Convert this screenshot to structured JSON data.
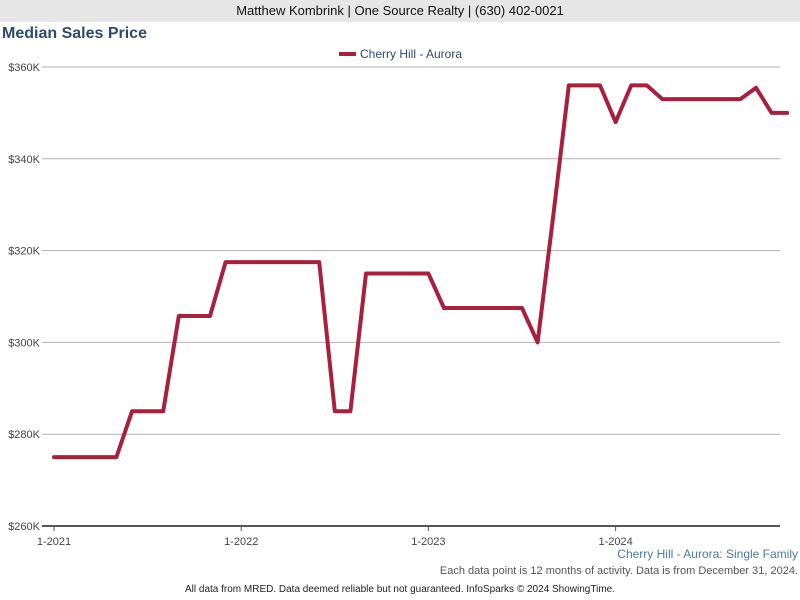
{
  "header": {
    "agent_line": "Matthew Kombrink | One Source Realty | (630) 402-0021"
  },
  "chart_data": {
    "type": "line",
    "title": "Median Sales Price",
    "xlabel": "",
    "ylabel": "",
    "legend_position": "top-center",
    "grid": true,
    "ylim": [
      260000,
      360000
    ],
    "y_ticks": [
      260000,
      280000,
      300000,
      320000,
      340000,
      360000
    ],
    "y_tick_labels": [
      "$260K",
      "$280K",
      "$300K",
      "$320K",
      "$340K",
      "$360K"
    ],
    "x_ticks": [
      "2021-01",
      "2022-01",
      "2023-01",
      "2024-01"
    ],
    "x_tick_labels": [
      "1-2021",
      "1-2022",
      "1-2023",
      "1-2024"
    ],
    "x": [
      "2021-01",
      "2021-02",
      "2021-03",
      "2021-04",
      "2021-05",
      "2021-06",
      "2021-07",
      "2021-08",
      "2021-09",
      "2021-10",
      "2021-11",
      "2021-12",
      "2022-01",
      "2022-02",
      "2022-03",
      "2022-04",
      "2022-05",
      "2022-06",
      "2022-07",
      "2022-08",
      "2022-09",
      "2022-10",
      "2022-11",
      "2022-12",
      "2023-01",
      "2023-02",
      "2023-03",
      "2023-04",
      "2023-05",
      "2023-06",
      "2023-07",
      "2023-08",
      "2023-09",
      "2023-10",
      "2023-11",
      "2023-12",
      "2024-01",
      "2024-02",
      "2024-03",
      "2024-04",
      "2024-05",
      "2024-06",
      "2024-07",
      "2024-08",
      "2024-09",
      "2024-10",
      "2024-11",
      "2024-12"
    ],
    "series": [
      {
        "name": "Cherry Hill - Aurora",
        "color": "#a8203c",
        "values": [
          275000,
          275000,
          275000,
          275000,
          275000,
          285000,
          285000,
          285000,
          305750,
          305750,
          305750,
          317500,
          317500,
          317500,
          317500,
          317500,
          317500,
          317500,
          285000,
          285000,
          315000,
          315000,
          315000,
          315000,
          315000,
          307500,
          307500,
          307500,
          307500,
          307500,
          307500,
          300000,
          327500,
          356000,
          356000,
          356000,
          348000,
          356000,
          356000,
          353000,
          353000,
          353000,
          353000,
          353000,
          353000,
          355500,
          350000,
          350000
        ]
      }
    ]
  },
  "caption": "Cherry Hill - Aurora: Single Family",
  "note": "Each data point is 12 months of activity. Data is from December 31, 2024.",
  "footer": "All data from MRED. Data deemed reliable but not guaranteed. InfoSparks © 2024 ShowingTime."
}
